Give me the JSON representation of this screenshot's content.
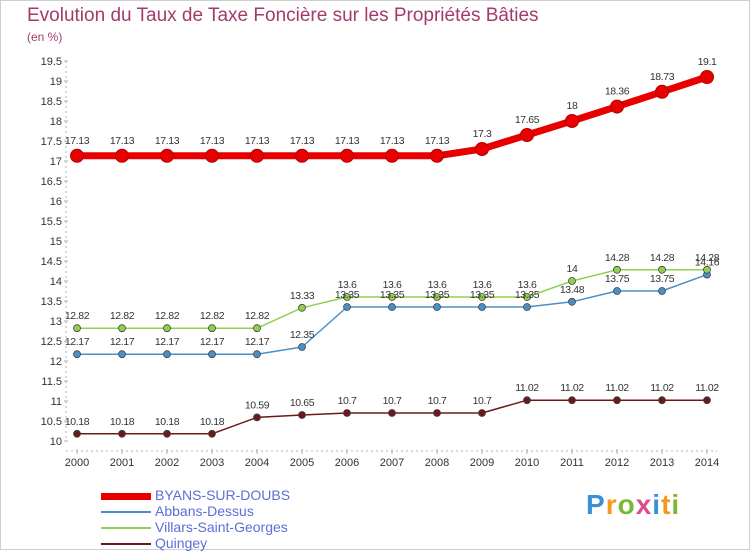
{
  "title": "Evolution du Taux de Taxe Foncière sur les Propriétés Bâties",
  "subtitle": "(en %)",
  "logo": {
    "letters": [
      "P",
      "r",
      "o",
      "x",
      "i",
      "t",
      "i"
    ],
    "colors": [
      "#3a8fd9",
      "#f29a1f",
      "#7ab83a",
      "#e04b8a",
      "#3a8fd9",
      "#f29a1f",
      "#7ab83a"
    ]
  },
  "chart_data": {
    "type": "line",
    "title": "Evolution du Taux de Taxe Foncière sur les Propriétés Bâties",
    "ylabel": "(en %)",
    "xlabel": "",
    "ylim": [
      10,
      19.5
    ],
    "yticks": [
      "10",
      "10.5",
      "11",
      "11.5",
      "12",
      "12.5",
      "13",
      "13.5",
      "14",
      "14.5",
      "15",
      "15.5",
      "16",
      "16.5",
      "17",
      "17.5",
      "18",
      "18.5",
      "19",
      "19.5"
    ],
    "x": [
      "2000",
      "2001",
      "2002",
      "2003",
      "2004",
      "2005",
      "2006",
      "2007",
      "2008",
      "2009",
      "2010",
      "2011",
      "2012",
      "2013",
      "2014"
    ],
    "grid": false,
    "series": [
      {
        "name": "BYANS-SUR-DOUBS",
        "color": "#e80000",
        "values": [
          17.13,
          17.13,
          17.13,
          17.13,
          17.13,
          17.13,
          17.13,
          17.13,
          17.13,
          17.3,
          17.65,
          18,
          18.36,
          18.73,
          19.1
        ],
        "labels": [
          "17.13",
          "17.13",
          "17.13",
          "17.13",
          "17.13",
          "17.13",
          "17.13",
          "17.13",
          "17.13",
          "17.3",
          "17.65",
          "18",
          "18.36",
          "18.73",
          "19.1"
        ]
      },
      {
        "name": "Abbans-Dessus",
        "color": "#4a90c8",
        "values": [
          12.17,
          12.17,
          12.17,
          12.17,
          12.17,
          12.35,
          13.35,
          13.35,
          13.35,
          13.35,
          13.35,
          13.48,
          13.75,
          13.75,
          14.16
        ],
        "labels": [
          "12.17",
          "12.17",
          "12.17",
          "12.17",
          "12.17",
          "12.35",
          "13.35",
          "13.35",
          "13.35",
          "13.35",
          "13.35",
          "13.48",
          "13.75",
          "13.75",
          "14.16"
        ]
      },
      {
        "name": "Villars-Saint-Georges",
        "color": "#8fd14f",
        "values": [
          12.82,
          12.82,
          12.82,
          12.82,
          12.82,
          13.33,
          13.6,
          13.6,
          13.6,
          13.6,
          13.6,
          14,
          14.28,
          14.28,
          14.28
        ],
        "labels": [
          "12.82",
          "12.82",
          "12.82",
          "12.82",
          "12.82",
          "13.33",
          "13.6",
          "13.6",
          "13.6",
          "13.6",
          "13.6",
          "14",
          "14.28",
          "14.28",
          "14.28"
        ]
      },
      {
        "name": "Quingey",
        "color": "#6b1a1a",
        "values": [
          10.18,
          10.18,
          10.18,
          10.18,
          10.59,
          10.65,
          10.7,
          10.7,
          10.7,
          10.7,
          11.02,
          11.02,
          11.02,
          11.02,
          11.02
        ],
        "labels": [
          "10.18",
          "10.18",
          "10.18",
          "10.18",
          "10.59",
          "10.65",
          "10.7",
          "10.7",
          "10.7",
          "10.7",
          "11.02",
          "11.02",
          "11.02",
          "11.02",
          "11.02"
        ]
      }
    ],
    "legend_position": "bottom-left"
  }
}
